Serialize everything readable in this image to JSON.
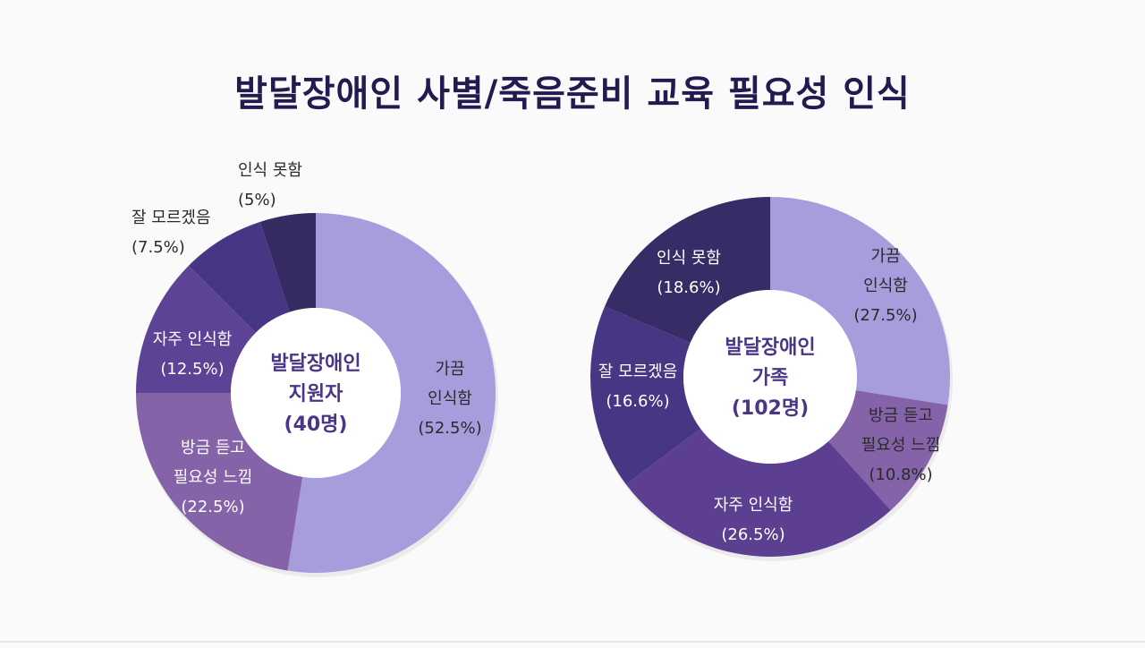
{
  "title": "발달장애인 사별/죽음준비 교육 필요성 인식",
  "colors": {
    "title": "#251a4f",
    "center_text": "#4a3587",
    "hole": "#ffffff",
    "label_light": "#ffffff",
    "label_dark": "#2a2a2a"
  },
  "chart_data": [
    {
      "type": "pie",
      "variant": "donut",
      "center_label": [
        "발달장애인",
        "지원자",
        "(40명)"
      ],
      "slices": [
        {
          "label": [
            "가끔",
            "인식함"
          ],
          "value": 52.5,
          "value_text": "(52.5%)",
          "color": "#a89ddc"
        },
        {
          "label": [
            "방금 듣고",
            "필요성 느낌"
          ],
          "value": 22.5,
          "value_text": "(22.5%)",
          "color": "#8463a8"
        },
        {
          "label": [
            "자주 인식함"
          ],
          "value": 12.5,
          "value_text": "(12.5%)",
          "color": "#5e4296"
        },
        {
          "label": [
            "잘 모르겠음"
          ],
          "value": 7.5,
          "value_text": "(7.5%)",
          "color": "#463684"
        },
        {
          "label": [
            "인식 못함"
          ],
          "value": 5,
          "value_text": "(5%)",
          "color": "#352a62"
        }
      ]
    },
    {
      "type": "pie",
      "variant": "donut",
      "center_label": [
        "발달장애인",
        "가족",
        "(102명)"
      ],
      "slices": [
        {
          "label": [
            "가끔",
            "인식함"
          ],
          "value": 27.5,
          "value_text": "(27.5%)",
          "color": "#a89ddc"
        },
        {
          "label": [
            "방금 듣고",
            "필요성 느낌"
          ],
          "value": 10.8,
          "value_text": "(10.8%)",
          "color": "#8463a8"
        },
        {
          "label": [
            "자주 인식함"
          ],
          "value": 26.5,
          "value_text": "(26.5%)",
          "color": "#5c3f90"
        },
        {
          "label": [
            "잘 모르겠음"
          ],
          "value": 16.6,
          "value_text": "(16.6%)",
          "color": "#463684"
        },
        {
          "label": [
            "인식 못함"
          ],
          "value": 18.6,
          "value_text": "(18.6%)",
          "color": "#372c66"
        }
      ]
    }
  ]
}
